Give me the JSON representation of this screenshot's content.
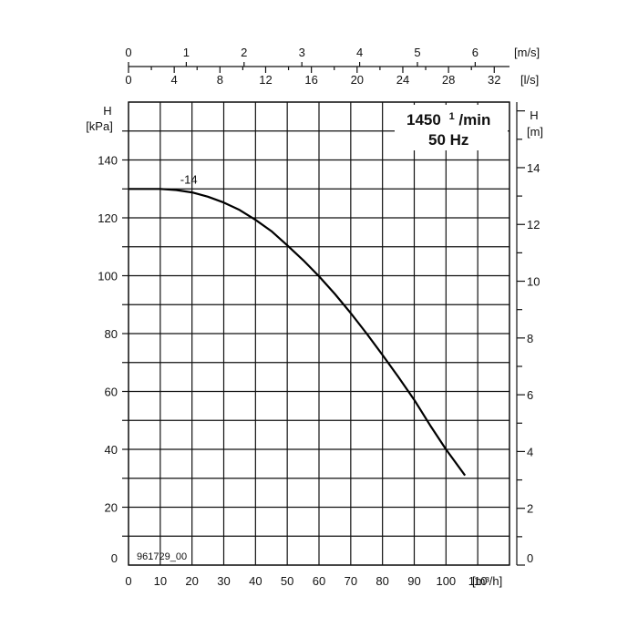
{
  "chart_data": {
    "type": "line",
    "box": {
      "speed_value": "1450",
      "speed_exp": "1",
      "speed_unit": "/min",
      "frequency": "50 Hz"
    },
    "drawing_code": "961729_00",
    "x_axis": {
      "unit": "[m³/h]",
      "range": [
        0,
        120
      ],
      "ticks": [
        "0",
        "10",
        "20",
        "30",
        "40",
        "50",
        "60",
        "70",
        "80",
        "90",
        "100",
        "110"
      ]
    },
    "x_axis_ls": {
      "unit": "[l/s]",
      "ticks": [
        "0",
        "4",
        "8",
        "12",
        "16",
        "20",
        "24",
        "28",
        "32"
      ]
    },
    "x_axis_ms": {
      "unit": "[m/s]",
      "ticks": [
        "0",
        "1",
        "2",
        "3",
        "4",
        "5",
        "6"
      ]
    },
    "y_axis_left": {
      "label": "H",
      "unit": "[kPa]",
      "range": [
        0,
        160
      ],
      "ticks": [
        "0",
        "20",
        "40",
        "60",
        "80",
        "100",
        "120",
        "140"
      ]
    },
    "y_axis_right": {
      "label": "H",
      "unit": "[m]",
      "range": [
        0,
        16.31
      ],
      "ticks": [
        "0",
        "2",
        "4",
        "6",
        "8",
        "10",
        "12",
        "14"
      ]
    },
    "grid": true,
    "series": [
      {
        "name": "-14",
        "x": [
          0,
          5,
          10,
          15,
          20,
          25,
          30,
          35,
          40,
          45,
          50,
          55,
          60,
          65,
          70,
          75,
          80,
          85,
          90,
          95,
          100,
          106
        ],
        "y": [
          130,
          130,
          130,
          129.6,
          128.8,
          127.3,
          125.3,
          122.7,
          119.3,
          115.4,
          110.5,
          105.4,
          99.8,
          93.7,
          87.1,
          80.0,
          72.6,
          65.0,
          57.1,
          48.3,
          40.0,
          31.0
        ]
      }
    ]
  }
}
